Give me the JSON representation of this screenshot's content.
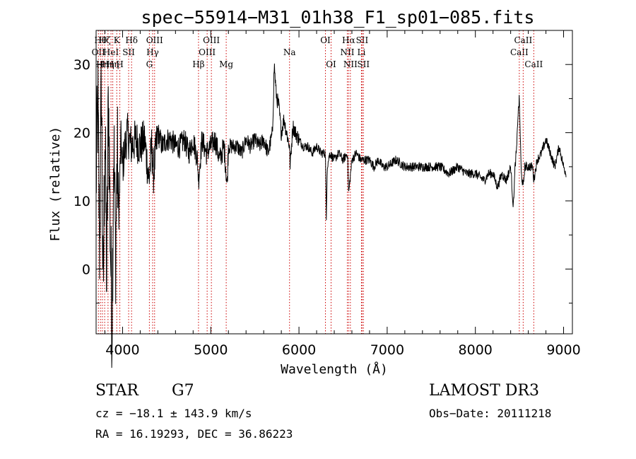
{
  "chart_data": {
    "type": "line",
    "title": "spec−55914−M31_01h38_F1_sp01−085.fits",
    "xlabel": "Wavelength (Å)",
    "ylabel": "Flux (relative)",
    "xlim": [
      3700,
      9100
    ],
    "ylim": [
      -9.5,
      35
    ],
    "xticks": [
      4000,
      5000,
      6000,
      7000,
      8000,
      9000
    ],
    "yticks": [
      0,
      10,
      20,
      30
    ],
    "series": [
      {
        "name": "spectrum",
        "x": [
          3700,
          3720,
          3740,
          3760,
          3780,
          3800,
          3820,
          3840,
          3860,
          3880,
          3900,
          3920,
          3940,
          3960,
          3980,
          4000,
          4050,
          4100,
          4150,
          4200,
          4250,
          4300,
          4330,
          4350,
          4400,
          4450,
          4500,
          4550,
          4600,
          4650,
          4700,
          4750,
          4800,
          4850,
          4861,
          4900,
          4950,
          5000,
          5050,
          5100,
          5150,
          5170,
          5184,
          5200,
          5250,
          5300,
          5350,
          5400,
          5450,
          5500,
          5550,
          5600,
          5650,
          5700,
          5720,
          5740,
          5750,
          5770,
          5800,
          5830,
          5860,
          5893,
          5900,
          5930,
          5960,
          6000,
          6050,
          6100,
          6150,
          6200,
          6250,
          6300,
          6310,
          6320,
          6350,
          6400,
          6450,
          6500,
          6550,
          6563,
          6600,
          6650,
          6700,
          6750,
          6800,
          6850,
          6900,
          6950,
          7000,
          7100,
          7200,
          7300,
          7400,
          7500,
          7600,
          7700,
          7800,
          7900,
          8000,
          8100,
          8150,
          8200,
          8250,
          8300,
          8350,
          8400,
          8430,
          8450,
          8470,
          8480,
          8498,
          8520,
          8542,
          8560,
          8600,
          8650,
          8662,
          8700,
          8750,
          8800,
          8850,
          8900,
          8950,
          9000,
          9030
        ],
        "values": [
          13,
          24,
          3,
          28,
          -6,
          22,
          -2,
          26,
          6,
          -8,
          19,
          2,
          17,
          8,
          19,
          15,
          20,
          18,
          19,
          18,
          19,
          13,
          18,
          14,
          20,
          18,
          19,
          19,
          18,
          18,
          19,
          17,
          19,
          16,
          13,
          19,
          17,
          18,
          19,
          16,
          18,
          15,
          12,
          18,
          18,
          18,
          17,
          19,
          18,
          19,
          18,
          19,
          17,
          20,
          30,
          26,
          25,
          24,
          20,
          22,
          20,
          18,
          15,
          21,
          20,
          19,
          18,
          18,
          17,
          18,
          17,
          17,
          7,
          15,
          17,
          16,
          17,
          16,
          17,
          11,
          16,
          17,
          16,
          16,
          16,
          15,
          16,
          15,
          15,
          16,
          15,
          15,
          15,
          15,
          15,
          14,
          15,
          14,
          14,
          13,
          14,
          14,
          12,
          14,
          13,
          15,
          9,
          15,
          18,
          22,
          25,
          14,
          12,
          15,
          15,
          15,
          13,
          16,
          17,
          19,
          17,
          15,
          18,
          15,
          14
        ]
      }
    ],
    "lines": [
      {
        "wl": 3726,
        "label": "OII",
        "row": 2
      },
      {
        "wl": 3750,
        "label": "Hθ",
        "row": 1
      },
      {
        "wl": 3771,
        "label": "Hη",
        "row": 3
      },
      {
        "wl": 3797,
        "label": "Hζ",
        "row": 1
      },
      {
        "wl": 3835,
        "label": "Hη",
        "row": 3
      },
      {
        "wl": 3869,
        "label": "HeI",
        "row": 2
      },
      {
        "wl": 3889,
        "label": "Hη",
        "row": 3
      },
      {
        "wl": 3934,
        "label": "K",
        "row": 1
      },
      {
        "wl": 3969,
        "label": "H",
        "row": 3
      },
      {
        "wl": 4069,
        "label": "SII",
        "row": 2
      },
      {
        "wl": 4102,
        "label": "Hδ",
        "row": 1
      },
      {
        "wl": 4304,
        "label": "G",
        "row": 3
      },
      {
        "wl": 4341,
        "label": "Hγ",
        "row": 2
      },
      {
        "wl": 4363,
        "label": "OIII",
        "row": 1
      },
      {
        "wl": 4861,
        "label": "Hβ",
        "row": 3
      },
      {
        "wl": 4959,
        "label": "OIII",
        "row": 2
      },
      {
        "wl": 5007,
        "label": "OIII",
        "row": 1
      },
      {
        "wl": 5175,
        "label": "Mg",
        "row": 3
      },
      {
        "wl": 5893,
        "label": "Na",
        "row": 2
      },
      {
        "wl": 6300,
        "label": "OI",
        "row": 1
      },
      {
        "wl": 6364,
        "label": "OI",
        "row": 3
      },
      {
        "wl": 6548,
        "label": "NII",
        "row": 2
      },
      {
        "wl": 6563,
        "label": "Hα",
        "row": 1
      },
      {
        "wl": 6583,
        "label": "NII",
        "row": 3
      },
      {
        "wl": 6708,
        "label": "Li",
        "row": 2
      },
      {
        "wl": 6716,
        "label": "SII",
        "row": 1
      },
      {
        "wl": 6731,
        "label": "SII",
        "row": 3
      },
      {
        "wl": 8498,
        "label": "CaII",
        "row": 2
      },
      {
        "wl": 8542,
        "label": "CaII",
        "row": 1
      },
      {
        "wl": 8662,
        "label": "CaII",
        "row": 3
      }
    ]
  },
  "info": {
    "class": "STAR",
    "subclass": "G7",
    "survey": "LAMOST DR3",
    "cz": "cz = −18.1 ± 143.9 km/s",
    "obsdate": "Obs−Date: 20111218",
    "coords": "RA =  16.19293, DEC =  36.86223"
  },
  "colors": {
    "axis": "#000000",
    "spectrum": "#000000",
    "line_marker": "#cc0000"
  }
}
